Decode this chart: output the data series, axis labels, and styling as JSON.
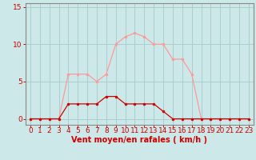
{
  "x": [
    0,
    1,
    2,
    3,
    4,
    5,
    6,
    7,
    8,
    9,
    10,
    11,
    12,
    13,
    14,
    15,
    16,
    17,
    18,
    19,
    20,
    21,
    22,
    23
  ],
  "y_rafales": [
    0,
    0,
    0,
    0,
    6,
    6,
    6,
    5,
    6,
    10,
    11,
    11.5,
    11,
    10,
    10,
    8,
    8,
    6,
    0,
    0,
    0,
    0,
    0,
    0
  ],
  "y_moyen": [
    0,
    0,
    0,
    0,
    2,
    2,
    2,
    2,
    3,
    3,
    2,
    2,
    2,
    2,
    1,
    0,
    0,
    0,
    0,
    0,
    0,
    0,
    0,
    0
  ],
  "xlabel": "Vent moyen/en rafales ( km/h )",
  "ylabel_ticks": [
    0,
    5,
    10,
    15
  ],
  "xlim": [
    -0.5,
    23.5
  ],
  "ylim": [
    -0.8,
    15.5
  ],
  "bg_color": "#cce8e8",
  "grid_color": "#aacece",
  "line_color_rafales": "#ff9999",
  "line_color_moyen": "#cc0000",
  "marker_color_rafales": "#ff9999",
  "marker_color_moyen": "#cc0000",
  "xlabel_fontsize": 7,
  "tick_fontsize": 6.5,
  "xlabel_color": "#cc0000",
  "tick_color": "#cc0000",
  "axis_color": "#888888",
  "spine_color": "#888888"
}
